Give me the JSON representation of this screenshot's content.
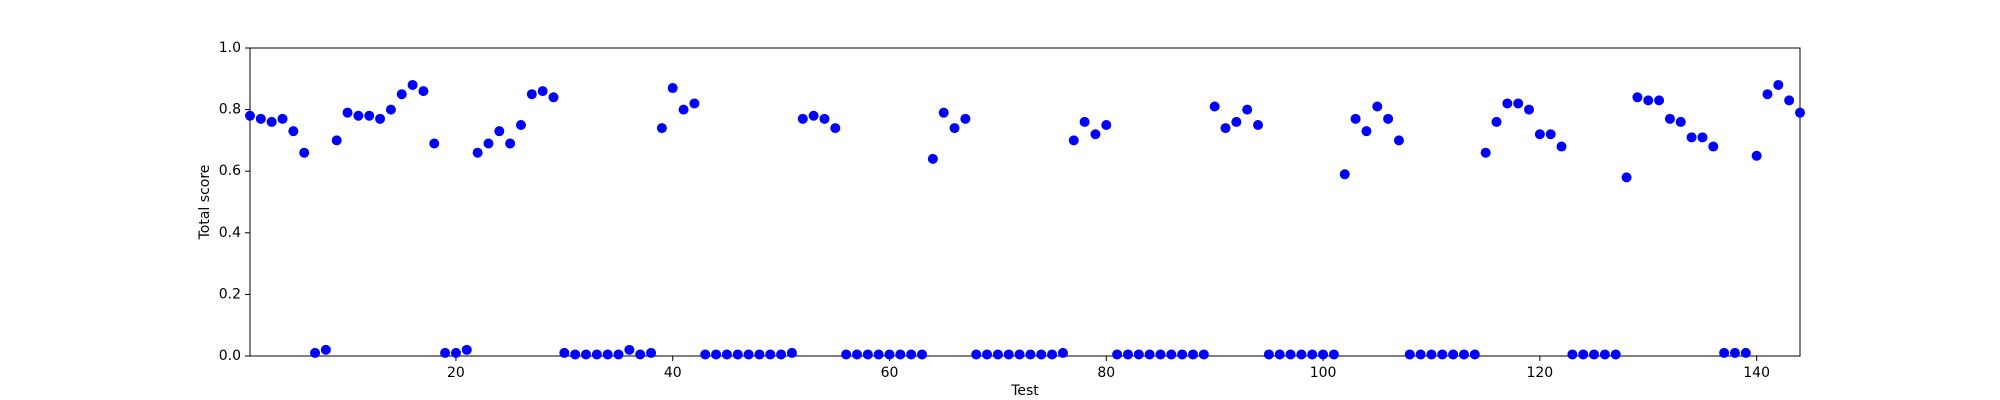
{
  "chart_data": {
    "type": "scatter",
    "xlabel": "Test",
    "ylabel": "Total score",
    "xlim": [
      1,
      144
    ],
    "ylim": [
      0,
      1
    ],
    "xticks": [
      20,
      40,
      60,
      80,
      100,
      120,
      140
    ],
    "yticks": [
      {
        "value": 0,
        "label": "0.0"
      },
      0.2,
      0.4,
      0.6,
      0.8,
      {
        "value": 1,
        "label": "1.0"
      }
    ],
    "color": "#0000ff",
    "x": [
      1,
      2,
      3,
      4,
      5,
      6,
      7,
      8,
      9,
      10,
      11,
      12,
      13,
      14,
      15,
      16,
      17,
      18,
      19,
      20,
      21,
      22,
      23,
      24,
      25,
      26,
      27,
      28,
      29,
      30,
      31,
      32,
      33,
      34,
      35,
      36,
      37,
      38,
      39,
      40,
      41,
      42,
      43,
      44,
      45,
      46,
      47,
      48,
      49,
      50,
      51,
      52,
      53,
      54,
      55,
      56,
      57,
      58,
      59,
      60,
      61,
      62,
      63,
      64,
      65,
      66,
      67,
      68,
      69,
      70,
      71,
      72,
      73,
      74,
      75,
      76,
      77,
      78,
      79,
      80,
      81,
      82,
      83,
      84,
      85,
      86,
      87,
      88,
      89,
      90,
      91,
      92,
      93,
      94,
      95,
      96,
      97,
      98,
      99,
      100,
      101,
      102,
      103,
      104,
      105,
      106,
      107,
      108,
      109,
      110,
      111,
      112,
      113,
      114,
      115,
      116,
      117,
      118,
      119,
      120,
      121,
      122,
      123,
      124,
      125,
      126,
      127,
      128,
      129,
      130,
      131,
      132,
      133,
      134,
      135,
      136,
      137,
      138,
      139,
      140,
      141,
      142,
      143,
      144
    ],
    "values": [
      0.78,
      0.77,
      0.76,
      0.77,
      0.73,
      0.66,
      0.01,
      0.02,
      0.7,
      0.79,
      0.78,
      0.78,
      0.77,
      0.8,
      0.85,
      0.88,
      0.86,
      0.69,
      0.01,
      0.01,
      0.02,
      0.66,
      0.69,
      0.73,
      0.69,
      0.75,
      0.85,
      0.86,
      0.84,
      0.01,
      0.005,
      0.005,
      0.005,
      0.005,
      0.005,
      0.02,
      0.005,
      0.01,
      0.74,
      0.87,
      0.8,
      0.82,
      0.005,
      0.005,
      0.005,
      0.005,
      0.005,
      0.005,
      0.005,
      0.005,
      0.01,
      0.77,
      0.78,
      0.77,
      0.74,
      0.005,
      0.005,
      0.005,
      0.005,
      0.005,
      0.005,
      0.005,
      0.005,
      0.64,
      0.79,
      0.74,
      0.77,
      0.005,
      0.005,
      0.005,
      0.005,
      0.005,
      0.005,
      0.005,
      0.005,
      0.01,
      0.7,
      0.76,
      0.72,
      0.75,
      0.005,
      0.005,
      0.005,
      0.005,
      0.005,
      0.005,
      0.005,
      0.005,
      0.005,
      0.81,
      0.74,
      0.76,
      0.8,
      0.75,
      0.005,
      0.005,
      0.005,
      0.005,
      0.005,
      0.005,
      0.005,
      0.59,
      0.77,
      0.73,
      0.81,
      0.77,
      0.7,
      0.005,
      0.005,
      0.005,
      0.005,
      0.005,
      0.005,
      0.005,
      0.66,
      0.76,
      0.82,
      0.82,
      0.8,
      0.72,
      0.72,
      0.68,
      0.005,
      0.005,
      0.005,
      0.005,
      0.005,
      0.58,
      0.84,
      0.83,
      0.83,
      0.77,
      0.76,
      0.71,
      0.71,
      0.68,
      0.01,
      0.01,
      0.01,
      0.65,
      0.85,
      0.88,
      0.83,
      0.79
    ]
  }
}
